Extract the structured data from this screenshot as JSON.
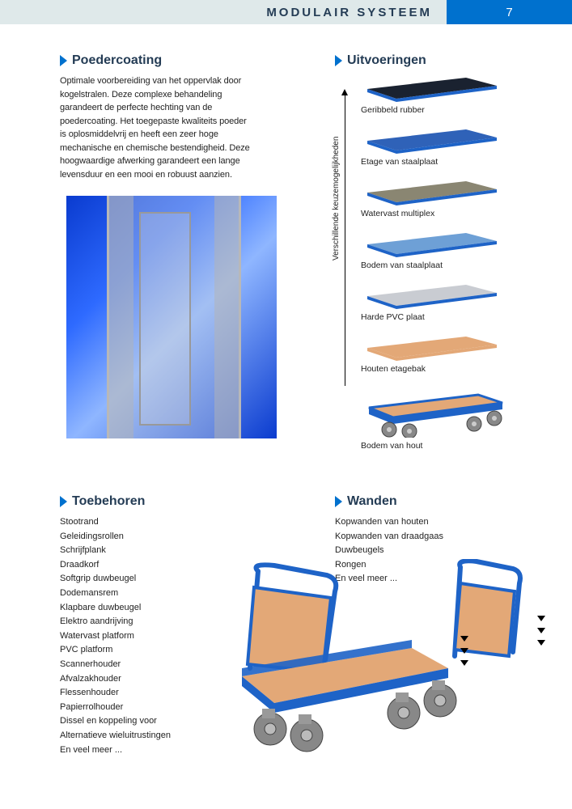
{
  "header": {
    "title": "MODULAIR SYSTEEM",
    "page_number": "7"
  },
  "colors": {
    "brand_blue": "#0071ce",
    "header_light": "#dfe9ea",
    "navy_text": "#243c55",
    "wood": "#e3a877",
    "frame_blue": "#1e63c7",
    "dark_rubber": "#1a2230",
    "steel_grey": "#7e8a96",
    "multiplex": "#8a8672",
    "pvc": "#c9ccd2"
  },
  "poedercoating": {
    "title": "Poedercoating",
    "text": "Optimale voorbereiding van het oppervlak door kogelstralen. Deze complexe behandeling garandeert de perfecte hechting van de poedercoating. Het toegepaste kwaliteits poeder is oplosmiddelvrij en heeft een zeer hoge mechanische en chemische bestendigheid. Deze hoogwaardige afwerking garandeert een lange levensduur en een mooi en robuust aanzien."
  },
  "uitvoeringen": {
    "title": "Uitvoeringen",
    "vertical_label": "Verschillende keuzemogelijkheden",
    "items": [
      {
        "label": "Geribbeld rubber",
        "surface": "#1a2230",
        "lip": "#1e63c7"
      },
      {
        "label": "Etage van staalplaat",
        "surface": "#2f62b8",
        "lip": "#1e63c7"
      },
      {
        "label": "Watervast multiplex",
        "surface": "#8a8672",
        "lip": "#1e63c7"
      },
      {
        "label": "Bodem van staalplaat",
        "surface": "#6ea0d6",
        "lip": "#1e63c7"
      },
      {
        "label": "Harde PVC plaat",
        "surface": "#c9ccd2",
        "lip": "#1e63c7"
      },
      {
        "label": "Houten etagebak",
        "surface": "#e3a877",
        "lip": "#e3a877"
      }
    ],
    "cart_label": "Bodem van hout"
  },
  "toebehoren": {
    "title": "Toebehoren",
    "items": [
      "Stootrand",
      "Geleidingsrollen",
      "Schrijfplank",
      "Draadkorf",
      "Softgrip duwbeugel",
      "Dodemansrem",
      "Klapbare duwbeugel",
      "Elektro aandrijving",
      "Watervast platform",
      "PVC platform",
      "Scannerhouder",
      "Afvalzakhouder",
      "Flessenhouder",
      "Papierrolhouder",
      "Dissel en koppeling voor",
      "Alternatieve wieluitrustingen",
      "En veel meer ..."
    ]
  },
  "wanden": {
    "title": "Wanden",
    "items": [
      "Kopwanden van houten",
      "Kopwanden van draadgaas",
      "Duwbeugels",
      "Rongen",
      "En veel meer ..."
    ]
  }
}
